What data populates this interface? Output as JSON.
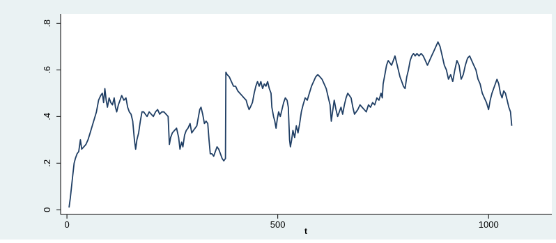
{
  "chart_data": {
    "type": "line",
    "title": "",
    "xlabel": "t",
    "ylabel": "",
    "xlim": [
      -15,
      1150
    ],
    "ylim": [
      -0.02,
      0.84
    ],
    "x_ticks": [
      0,
      500,
      1000
    ],
    "x_tick_labels": [
      "0",
      "500",
      "1000"
    ],
    "y_ticks": [
      0,
      0.2,
      0.4,
      0.6,
      0.8
    ],
    "y_tick_labels": [
      "0",
      ".2",
      ".4",
      ".6",
      ".8"
    ],
    "grid": false,
    "legend": "none",
    "series": [
      {
        "color": "#1f3e64",
        "points": [
          [
            5,
            0.01
          ],
          [
            8,
            0.05
          ],
          [
            11,
            0.1
          ],
          [
            14,
            0.15
          ],
          [
            17,
            0.2
          ],
          [
            20,
            0.22
          ],
          [
            24,
            0.24
          ],
          [
            28,
            0.25
          ],
          [
            32,
            0.3
          ],
          [
            35,
            0.26
          ],
          [
            40,
            0.27
          ],
          [
            45,
            0.28
          ],
          [
            50,
            0.3
          ],
          [
            55,
            0.33
          ],
          [
            60,
            0.36
          ],
          [
            65,
            0.39
          ],
          [
            70,
            0.42
          ],
          [
            75,
            0.47
          ],
          [
            80,
            0.49
          ],
          [
            84,
            0.5
          ],
          [
            87,
            0.46
          ],
          [
            90,
            0.52
          ],
          [
            93,
            0.47
          ],
          [
            96,
            0.44
          ],
          [
            100,
            0.48
          ],
          [
            104,
            0.46
          ],
          [
            108,
            0.45
          ],
          [
            112,
            0.48
          ],
          [
            115,
            0.44
          ],
          [
            118,
            0.42
          ],
          [
            122,
            0.45
          ],
          [
            126,
            0.47
          ],
          [
            130,
            0.49
          ],
          [
            135,
            0.47
          ],
          [
            140,
            0.48
          ],
          [
            144,
            0.44
          ],
          [
            148,
            0.42
          ],
          [
            152,
            0.41
          ],
          [
            156,
            0.38
          ],
          [
            160,
            0.3
          ],
          [
            163,
            0.26
          ],
          [
            166,
            0.3
          ],
          [
            170,
            0.33
          ],
          [
            174,
            0.38
          ],
          [
            178,
            0.42
          ],
          [
            182,
            0.42
          ],
          [
            186,
            0.41
          ],
          [
            190,
            0.4
          ],
          [
            195,
            0.42
          ],
          [
            200,
            0.41
          ],
          [
            205,
            0.4
          ],
          [
            210,
            0.42
          ],
          [
            215,
            0.43
          ],
          [
            220,
            0.41
          ],
          [
            225,
            0.42
          ],
          [
            230,
            0.42
          ],
          [
            235,
            0.41
          ],
          [
            240,
            0.4
          ],
          [
            243,
            0.28
          ],
          [
            246,
            0.31
          ],
          [
            250,
            0.33
          ],
          [
            255,
            0.34
          ],
          [
            260,
            0.35
          ],
          [
            265,
            0.31
          ],
          [
            268,
            0.26
          ],
          [
            272,
            0.29
          ],
          [
            275,
            0.27
          ],
          [
            279,
            0.32
          ],
          [
            283,
            0.34
          ],
          [
            287,
            0.35
          ],
          [
            292,
            0.37
          ],
          [
            296,
            0.33
          ],
          [
            300,
            0.34
          ],
          [
            304,
            0.35
          ],
          [
            308,
            0.36
          ],
          [
            312,
            0.4
          ],
          [
            315,
            0.43
          ],
          [
            318,
            0.44
          ],
          [
            322,
            0.41
          ],
          [
            326,
            0.37
          ],
          [
            330,
            0.38
          ],
          [
            334,
            0.37
          ],
          [
            337,
            0.3
          ],
          [
            340,
            0.24
          ],
          [
            344,
            0.24
          ],
          [
            348,
            0.23
          ],
          [
            352,
            0.25
          ],
          [
            356,
            0.27
          ],
          [
            360,
            0.26
          ],
          [
            364,
            0.24
          ],
          [
            368,
            0.22
          ],
          [
            372,
            0.21
          ],
          [
            376,
            0.22
          ],
          [
            377,
            0.59
          ],
          [
            380,
            0.58
          ],
          [
            385,
            0.57
          ],
          [
            390,
            0.55
          ],
          [
            395,
            0.53
          ],
          [
            400,
            0.53
          ],
          [
            405,
            0.51
          ],
          [
            410,
            0.5
          ],
          [
            415,
            0.49
          ],
          [
            420,
            0.48
          ],
          [
            425,
            0.47
          ],
          [
            428,
            0.45
          ],
          [
            432,
            0.43
          ],
          [
            435,
            0.44
          ],
          [
            440,
            0.46
          ],
          [
            444,
            0.5
          ],
          [
            448,
            0.53
          ],
          [
            452,
            0.55
          ],
          [
            456,
            0.53
          ],
          [
            460,
            0.55
          ],
          [
            464,
            0.52
          ],
          [
            468,
            0.54
          ],
          [
            472,
            0.53
          ],
          [
            476,
            0.55
          ],
          [
            480,
            0.52
          ],
          [
            484,
            0.5
          ],
          [
            486,
            0.44
          ],
          [
            490,
            0.4
          ],
          [
            493,
            0.38
          ],
          [
            496,
            0.35
          ],
          [
            499,
            0.39
          ],
          [
            502,
            0.42
          ],
          [
            506,
            0.4
          ],
          [
            510,
            0.43
          ],
          [
            514,
            0.46
          ],
          [
            518,
            0.48
          ],
          [
            522,
            0.47
          ],
          [
            525,
            0.44
          ],
          [
            528,
            0.3
          ],
          [
            530,
            0.27
          ],
          [
            533,
            0.3
          ],
          [
            536,
            0.34
          ],
          [
            540,
            0.31
          ],
          [
            544,
            0.36
          ],
          [
            548,
            0.33
          ],
          [
            552,
            0.37
          ],
          [
            556,
            0.42
          ],
          [
            560,
            0.45
          ],
          [
            565,
            0.48
          ],
          [
            570,
            0.47
          ],
          [
            575,
            0.5
          ],
          [
            580,
            0.53
          ],
          [
            585,
            0.55
          ],
          [
            590,
            0.57
          ],
          [
            595,
            0.58
          ],
          [
            600,
            0.57
          ],
          [
            605,
            0.56
          ],
          [
            610,
            0.54
          ],
          [
            615,
            0.52
          ],
          [
            620,
            0.48
          ],
          [
            624,
            0.45
          ],
          [
            627,
            0.38
          ],
          [
            630,
            0.42
          ],
          [
            634,
            0.47
          ],
          [
            638,
            0.43
          ],
          [
            642,
            0.4
          ],
          [
            646,
            0.42
          ],
          [
            650,
            0.44
          ],
          [
            654,
            0.41
          ],
          [
            658,
            0.45
          ],
          [
            662,
            0.48
          ],
          [
            666,
            0.5
          ],
          [
            670,
            0.49
          ],
          [
            674,
            0.48
          ],
          [
            678,
            0.44
          ],
          [
            682,
            0.41
          ],
          [
            686,
            0.42
          ],
          [
            690,
            0.43
          ],
          [
            695,
            0.45
          ],
          [
            700,
            0.44
          ],
          [
            705,
            0.43
          ],
          [
            710,
            0.42
          ],
          [
            715,
            0.45
          ],
          [
            720,
            0.44
          ],
          [
            725,
            0.46
          ],
          [
            730,
            0.45
          ],
          [
            735,
            0.48
          ],
          [
            740,
            0.47
          ],
          [
            745,
            0.5
          ],
          [
            748,
            0.48
          ],
          [
            750,
            0.54
          ],
          [
            754,
            0.58
          ],
          [
            758,
            0.62
          ],
          [
            762,
            0.64
          ],
          [
            766,
            0.63
          ],
          [
            770,
            0.62
          ],
          [
            774,
            0.64
          ],
          [
            778,
            0.66
          ],
          [
            782,
            0.63
          ],
          [
            786,
            0.6
          ],
          [
            790,
            0.57
          ],
          [
            794,
            0.55
          ],
          [
            798,
            0.53
          ],
          [
            802,
            0.52
          ],
          [
            806,
            0.57
          ],
          [
            810,
            0.6
          ],
          [
            814,
            0.64
          ],
          [
            818,
            0.66
          ],
          [
            822,
            0.67
          ],
          [
            826,
            0.66
          ],
          [
            830,
            0.67
          ],
          [
            835,
            0.66
          ],
          [
            840,
            0.67
          ],
          [
            845,
            0.66
          ],
          [
            850,
            0.64
          ],
          [
            855,
            0.62
          ],
          [
            860,
            0.64
          ],
          [
            865,
            0.66
          ],
          [
            870,
            0.68
          ],
          [
            875,
            0.7
          ],
          [
            880,
            0.72
          ],
          [
            885,
            0.7
          ],
          [
            890,
            0.66
          ],
          [
            895,
            0.62
          ],
          [
            900,
            0.6
          ],
          [
            905,
            0.56
          ],
          [
            910,
            0.58
          ],
          [
            915,
            0.55
          ],
          [
            920,
            0.6
          ],
          [
            925,
            0.64
          ],
          [
            930,
            0.62
          ],
          [
            935,
            0.56
          ],
          [
            940,
            0.58
          ],
          [
            945,
            0.62
          ],
          [
            950,
            0.65
          ],
          [
            955,
            0.66
          ],
          [
            960,
            0.64
          ],
          [
            965,
            0.62
          ],
          [
            970,
            0.6
          ],
          [
            975,
            0.56
          ],
          [
            980,
            0.54
          ],
          [
            985,
            0.5
          ],
          [
            990,
            0.48
          ],
          [
            995,
            0.46
          ],
          [
            1000,
            0.43
          ],
          [
            1004,
            0.47
          ],
          [
            1008,
            0.5
          ],
          [
            1012,
            0.52
          ],
          [
            1016,
            0.54
          ],
          [
            1020,
            0.56
          ],
          [
            1024,
            0.54
          ],
          [
            1028,
            0.5
          ],
          [
            1032,
            0.48
          ],
          [
            1036,
            0.51
          ],
          [
            1040,
            0.5
          ],
          [
            1044,
            0.47
          ],
          [
            1048,
            0.44
          ],
          [
            1052,
            0.42
          ],
          [
            1055,
            0.36
          ]
        ]
      }
    ]
  }
}
